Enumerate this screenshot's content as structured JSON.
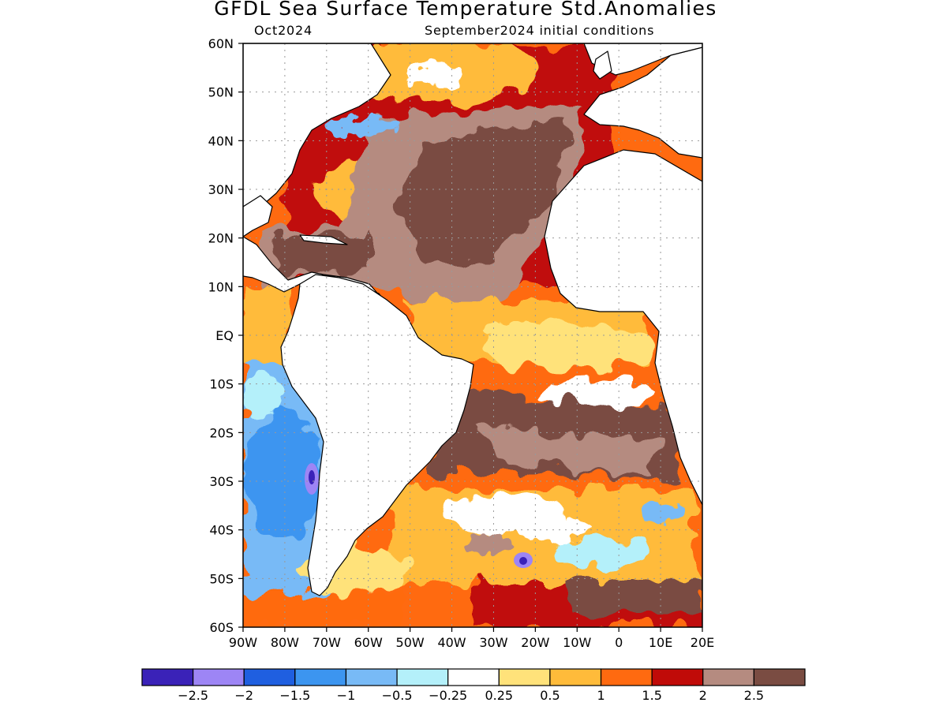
{
  "title": "GFDL Sea Surface Temperature Std.Anomalies",
  "subtitle_left": "Oct2024",
  "subtitle_right": "September2024 initial conditions",
  "map": {
    "lon_range": [
      -90,
      20
    ],
    "lat_range": [
      -60,
      60
    ],
    "lat_ticks": [
      {
        "lat": 60,
        "label": "60N"
      },
      {
        "lat": 50,
        "label": "50N"
      },
      {
        "lat": 40,
        "label": "40N"
      },
      {
        "lat": 30,
        "label": "30N"
      },
      {
        "lat": 20,
        "label": "20N"
      },
      {
        "lat": 10,
        "label": "10N"
      },
      {
        "lat": 0,
        "label": "EQ"
      },
      {
        "lat": -10,
        "label": "10S"
      },
      {
        "lat": -20,
        "label": "20S"
      },
      {
        "lat": -30,
        "label": "30S"
      },
      {
        "lat": -40,
        "label": "40S"
      },
      {
        "lat": -50,
        "label": "50S"
      },
      {
        "lat": -60,
        "label": "60S"
      }
    ],
    "lon_ticks": [
      {
        "lon": -90,
        "label": "90W"
      },
      {
        "lon": -80,
        "label": "80W"
      },
      {
        "lon": -70,
        "label": "70W"
      },
      {
        "lon": -60,
        "label": "60W"
      },
      {
        "lon": -50,
        "label": "50W"
      },
      {
        "lon": -40,
        "label": "40W"
      },
      {
        "lon": -30,
        "label": "30W"
      },
      {
        "lon": -20,
        "label": "20W"
      },
      {
        "lon": -10,
        "label": "10W"
      },
      {
        "lon": 0,
        "label": "0"
      },
      {
        "lon": 10,
        "label": "10E"
      },
      {
        "lon": 20,
        "label": "20E"
      }
    ]
  },
  "legend": {
    "colors": [
      "#3a22b8",
      "#9d85f5",
      "#1f5fe0",
      "#3c95f0",
      "#78baf6",
      "#b4f0fa",
      "#ffffff",
      "#ffe27a",
      "#ffbb3a",
      "#ff6a10",
      "#c00b08",
      "#b58b80",
      "#7a4c42"
    ],
    "labels": [
      "−2.5",
      "−2",
      "−1.5",
      "−1",
      "−0.5",
      "−0.25",
      "0.25",
      "0.5",
      "1",
      "1.5",
      "2",
      "2.5"
    ]
  }
}
